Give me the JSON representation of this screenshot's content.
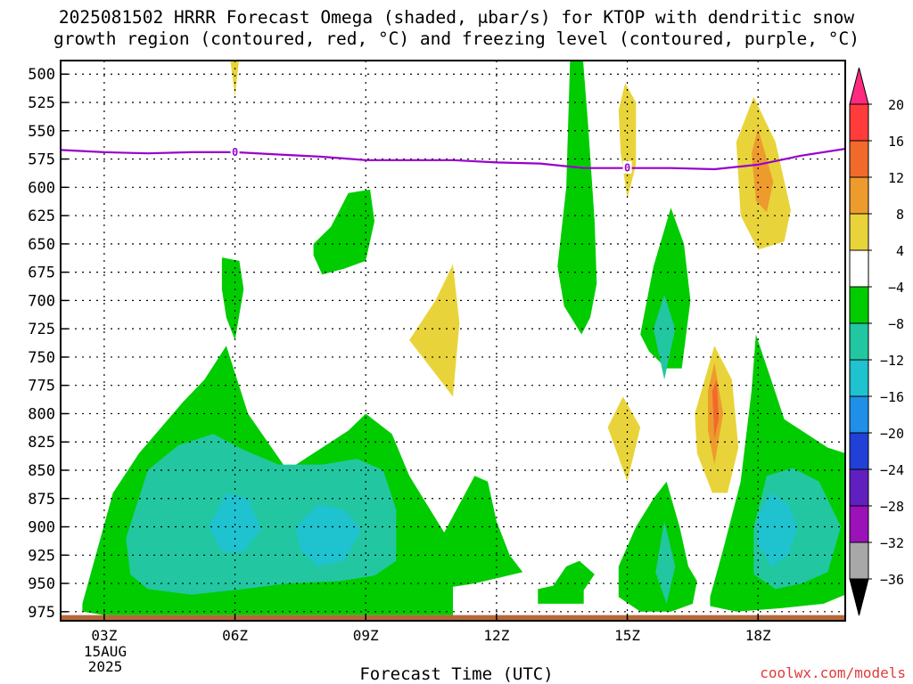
{
  "title": {
    "line1": "2025081502 HRRR Forecast Omega (shaded, μbar/s) for KTOP with dendritic snow",
    "line2": "growth region (contoured, red, °C) and freezing level (contoured, purple, °C)"
  },
  "xlabel": "Forecast Time (UTC)",
  "credit": "coolwx.com/models",
  "date": {
    "day": "15AUG",
    "year": "2025"
  },
  "freezing_label": "0",
  "colors": {
    "freezing_level": "#9900cc",
    "ground": "#b5683a",
    "gridline": "#000000"
  },
  "chart_data": {
    "type": "heatmap",
    "title": "2025081502 HRRR Forecast Omega (shaded, μbar/s) for KTOP with dendritic snow growth region (contoured, red, °C) and freezing level (contoured, purple, °C)",
    "xlabel": "Forecast Time (UTC)",
    "ylabel": "",
    "x_unit": "forecast hour (UTC)",
    "xlim": [
      2,
      20
    ],
    "y_unit": "mb",
    "ylim": [
      980,
      490
    ],
    "y_ticks": [
      500,
      525,
      550,
      575,
      600,
      625,
      650,
      675,
      700,
      725,
      750,
      775,
      800,
      825,
      850,
      875,
      900,
      925,
      950,
      975
    ],
    "x_ticks": [
      {
        "hour": 3,
        "label": "03Z"
      },
      {
        "hour": 6,
        "label": "06Z"
      },
      {
        "hour": 9,
        "label": "09Z"
      },
      {
        "hour": 12,
        "label": "12Z"
      },
      {
        "hour": 15,
        "label": "15Z"
      },
      {
        "hour": 18,
        "label": "18Z"
      }
    ],
    "grid": true,
    "colorbar": {
      "placement": "right",
      "labels": [
        "20",
        "16",
        "12",
        "8",
        "4",
        "−4",
        "−8",
        "−12",
        "−16",
        "−20",
        "−24",
        "−28",
        "−32",
        "−36"
      ],
      "bins": [
        {
          "color": "#ff2a7f",
          "kind": "top-arrow"
        },
        {
          "color": "#ff3b3b",
          "lo": 16,
          "hi": 20
        },
        {
          "color": "#f26a2b",
          "lo": 12,
          "hi": 16
        },
        {
          "color": "#ee9b2e",
          "lo": 8,
          "hi": 12
        },
        {
          "color": "#e8d43a",
          "lo": 4,
          "hi": 8
        },
        {
          "color": "#ffffff",
          "lo": -4,
          "hi": 4
        },
        {
          "color": "#00cc00",
          "lo": -8,
          "hi": -4
        },
        {
          "color": "#22c7a1",
          "lo": -12,
          "hi": -8
        },
        {
          "color": "#1fc2cf",
          "lo": -16,
          "hi": -12
        },
        {
          "color": "#1f8fe8",
          "lo": -20,
          "hi": -16
        },
        {
          "color": "#2040d8",
          "lo": -24,
          "hi": -20
        },
        {
          "color": "#6020c0",
          "lo": -28,
          "hi": -24
        },
        {
          "color": "#9a12b8",
          "lo": -32,
          "hi": -28
        },
        {
          "color": "#a8a8a8",
          "lo": -36,
          "hi": -32
        },
        {
          "color": "#000000",
          "kind": "bottom-arrow"
        }
      ]
    },
    "freezing_level": {
      "label": "0",
      "hours": [
        2,
        3,
        4,
        5,
        6,
        7,
        8,
        9,
        10,
        11,
        12,
        13,
        14,
        15,
        16,
        17,
        18,
        19,
        20
      ],
      "pressure": [
        567,
        569,
        570,
        569,
        569,
        571,
        573,
        576,
        576,
        576,
        578,
        579,
        583,
        583,
        583,
        584,
        580,
        572,
        566
      ],
      "label_hours": [
        6,
        15
      ]
    },
    "omega_regions": [
      {
        "level": "-8 to -4",
        "color": "#00cc00",
        "polygon": [
          [
            2.5,
            968
          ],
          [
            3.2,
            870
          ],
          [
            3.8,
            835
          ],
          [
            4.8,
            790
          ],
          [
            5.3,
            770
          ],
          [
            5.8,
            740
          ],
          [
            6.3,
            800
          ],
          [
            7.2,
            850
          ],
          [
            8.0,
            830
          ],
          [
            8.6,
            815
          ],
          [
            9.0,
            800
          ],
          [
            9.6,
            818
          ],
          [
            10.0,
            855
          ],
          [
            10.8,
            905
          ],
          [
            11.5,
            855
          ],
          [
            11.8,
            860
          ],
          [
            12.0,
            895
          ],
          [
            12.3,
            925
          ],
          [
            12.6,
            940
          ],
          [
            11.5,
            950
          ],
          [
            11.0,
            953
          ],
          [
            11.0,
            978
          ],
          [
            9.4,
            978
          ],
          [
            6.0,
            978
          ],
          [
            3.0,
            978
          ],
          [
            2.5,
            975
          ]
        ]
      },
      {
        "level": "-8 to -4",
        "color": "#00cc00",
        "polygon": [
          [
            5.7,
            662
          ],
          [
            6.1,
            665
          ],
          [
            6.2,
            690
          ],
          [
            6.0,
            735
          ],
          [
            5.8,
            715
          ],
          [
            5.7,
            690
          ]
        ]
      },
      {
        "level": "-8 to -4",
        "color": "#00cc00",
        "polygon": [
          [
            7.8,
            650
          ],
          [
            8.2,
            635
          ],
          [
            8.6,
            605
          ],
          [
            9.1,
            602
          ],
          [
            9.2,
            630
          ],
          [
            9.0,
            665
          ],
          [
            8.5,
            672
          ],
          [
            8.0,
            677
          ],
          [
            7.8,
            660
          ]
        ]
      },
      {
        "level": "-8 to -4",
        "color": "#00cc00",
        "polygon": [
          [
            13.7,
            470
          ],
          [
            13.95,
            470
          ],
          [
            14.1,
            545
          ],
          [
            14.25,
            630
          ],
          [
            14.3,
            685
          ],
          [
            14.15,
            715
          ],
          [
            13.95,
            730
          ],
          [
            13.55,
            705
          ],
          [
            13.4,
            670
          ],
          [
            13.6,
            600
          ]
        ]
      },
      {
        "level": "-8 to -4",
        "color": "#00cc00",
        "polygon": [
          [
            12.95,
            955
          ],
          [
            13.3,
            952
          ],
          [
            13.6,
            935
          ],
          [
            13.9,
            930
          ],
          [
            14.25,
            942
          ],
          [
            14.0,
            956
          ],
          [
            14.0,
            968
          ],
          [
            12.95,
            968
          ]
        ]
      },
      {
        "level": "-8 to -4",
        "color": "#00cc00",
        "polygon": [
          [
            15.3,
            730
          ],
          [
            15.6,
            670
          ],
          [
            16.0,
            618
          ],
          [
            16.3,
            650
          ],
          [
            16.45,
            700
          ],
          [
            16.25,
            760
          ],
          [
            15.9,
            760
          ],
          [
            15.5,
            745
          ]
        ]
      },
      {
        "level": "-8 to -4",
        "color": "#00cc00",
        "polygon": [
          [
            14.8,
            935
          ],
          [
            15.2,
            900
          ],
          [
            15.6,
            875
          ],
          [
            15.9,
            860
          ],
          [
            16.2,
            900
          ],
          [
            16.4,
            935
          ],
          [
            16.6,
            948
          ],
          [
            16.5,
            968
          ],
          [
            16.0,
            975
          ],
          [
            15.3,
            975
          ],
          [
            14.8,
            962
          ]
        ]
      },
      {
        "level": "-8 to -4",
        "color": "#00cc00",
        "polygon": [
          [
            16.9,
            962
          ],
          [
            17.2,
            920
          ],
          [
            17.6,
            860
          ],
          [
            17.85,
            780
          ],
          [
            17.95,
            730
          ],
          [
            18.3,
            770
          ],
          [
            18.6,
            805
          ],
          [
            19.2,
            820
          ],
          [
            19.6,
            830
          ],
          [
            20.0,
            835
          ],
          [
            20.0,
            960
          ],
          [
            19.5,
            968
          ],
          [
            18.5,
            972
          ],
          [
            17.5,
            975
          ],
          [
            16.9,
            970
          ]
        ]
      },
      {
        "level": "-12 to -8",
        "color": "#22c7a1",
        "polygon": [
          [
            3.5,
            910
          ],
          [
            4.0,
            850
          ],
          [
            4.7,
            828
          ],
          [
            5.5,
            818
          ],
          [
            6.2,
            832
          ],
          [
            7.0,
            845
          ],
          [
            8.0,
            845
          ],
          [
            8.8,
            840
          ],
          [
            9.4,
            850
          ],
          [
            9.7,
            885
          ],
          [
            9.7,
            930
          ],
          [
            9.2,
            943
          ],
          [
            8.4,
            948
          ],
          [
            7.2,
            950
          ],
          [
            6.2,
            955
          ],
          [
            5.0,
            960
          ],
          [
            4.0,
            955
          ],
          [
            3.6,
            942
          ]
        ]
      },
      {
        "level": "-12 to -8",
        "color": "#22c7a1",
        "polygon": [
          [
            15.6,
            725
          ],
          [
            15.85,
            695
          ],
          [
            16.1,
            725
          ],
          [
            15.85,
            770
          ]
        ]
      },
      {
        "level": "-12 to -8",
        "color": "#22c7a1",
        "polygon": [
          [
            15.65,
            940
          ],
          [
            15.85,
            895
          ],
          [
            16.1,
            935
          ],
          [
            15.9,
            968
          ]
        ]
      },
      {
        "level": "-12 to -8",
        "color": "#22c7a1",
        "polygon": [
          [
            17.9,
            900
          ],
          [
            18.2,
            855
          ],
          [
            18.8,
            848
          ],
          [
            19.4,
            860
          ],
          [
            19.9,
            900
          ],
          [
            19.6,
            940
          ],
          [
            19.0,
            950
          ],
          [
            18.4,
            955
          ],
          [
            17.9,
            942
          ]
        ]
      },
      {
        "level": "-16 to -12",
        "color": "#1fc2cf",
        "polygon": [
          [
            5.4,
            900
          ],
          [
            5.8,
            870
          ],
          [
            6.3,
            875
          ],
          [
            6.6,
            902
          ],
          [
            6.2,
            922
          ],
          [
            5.7,
            922
          ]
        ]
      },
      {
        "level": "-16 to -12",
        "color": "#1fc2cf",
        "polygon": [
          [
            7.4,
            900
          ],
          [
            7.9,
            880
          ],
          [
            8.5,
            885
          ],
          [
            8.9,
            902
          ],
          [
            8.5,
            930
          ],
          [
            7.9,
            935
          ],
          [
            7.5,
            920
          ]
        ]
      },
      {
        "level": "-16 to -12",
        "color": "#1fc2cf",
        "polygon": [
          [
            18.0,
            890
          ],
          [
            18.3,
            870
          ],
          [
            18.7,
            880
          ],
          [
            18.9,
            900
          ],
          [
            18.7,
            925
          ],
          [
            18.3,
            935
          ],
          [
            18.0,
            915
          ]
        ]
      },
      {
        "level": "4 to 8",
        "color": "#e8d43a",
        "polygon": [
          [
            5.85,
            470
          ],
          [
            6.15,
            470
          ],
          [
            6.1,
            485
          ],
          [
            6.0,
            520
          ],
          [
            5.9,
            490
          ]
        ]
      },
      {
        "level": "4 to 8",
        "color": "#e8d43a",
        "polygon": [
          [
            10.0,
            735
          ],
          [
            10.6,
            700
          ],
          [
            11.0,
            668
          ],
          [
            11.15,
            720
          ],
          [
            11.0,
            785
          ],
          [
            10.5,
            760
          ]
        ]
      },
      {
        "level": "4 to 8",
        "color": "#e8d43a",
        "polygon": [
          [
            14.8,
            532
          ],
          [
            14.95,
            508
          ],
          [
            15.2,
            525
          ],
          [
            15.2,
            580
          ],
          [
            15.0,
            610
          ],
          [
            14.85,
            570
          ]
        ]
      },
      {
        "level": "4 to 8",
        "color": "#e8d43a",
        "polygon": [
          [
            14.55,
            812
          ],
          [
            14.9,
            785
          ],
          [
            15.3,
            812
          ],
          [
            15.0,
            860
          ]
        ]
      },
      {
        "level": "4 to 8",
        "color": "#e8d43a",
        "polygon": [
          [
            17.5,
            560
          ],
          [
            17.9,
            520
          ],
          [
            18.4,
            560
          ],
          [
            18.75,
            620
          ],
          [
            18.6,
            648
          ],
          [
            18.0,
            655
          ],
          [
            17.6,
            625
          ]
        ]
      },
      {
        "level": "4 to 8",
        "color": "#e8d43a",
        "polygon": [
          [
            16.55,
            800
          ],
          [
            17.0,
            740
          ],
          [
            17.4,
            770
          ],
          [
            17.55,
            830
          ],
          [
            17.3,
            870
          ],
          [
            16.95,
            870
          ],
          [
            16.6,
            835
          ]
        ]
      },
      {
        "level": "8 to 12",
        "color": "#ee9b2e",
        "polygon": [
          [
            17.85,
            570
          ],
          [
            18.0,
            548
          ],
          [
            18.35,
            595
          ],
          [
            18.2,
            622
          ],
          [
            17.95,
            612
          ]
        ]
      },
      {
        "level": "8 to 12",
        "color": "#ee9b2e",
        "polygon": [
          [
            16.85,
            780
          ],
          [
            17.0,
            755
          ],
          [
            17.2,
            800
          ],
          [
            17.0,
            845
          ],
          [
            16.85,
            815
          ]
        ]
      },
      {
        "level": "12 to 16",
        "color": "#f26a2b",
        "polygon": [
          [
            16.95,
            780
          ],
          [
            17.05,
            770
          ],
          [
            17.1,
            805
          ],
          [
            17.0,
            822
          ]
        ]
      }
    ],
    "ground": {
      "color": "#b5683a",
      "pressure": 978,
      "from_hour": 2,
      "to_hour": 20
    }
  }
}
